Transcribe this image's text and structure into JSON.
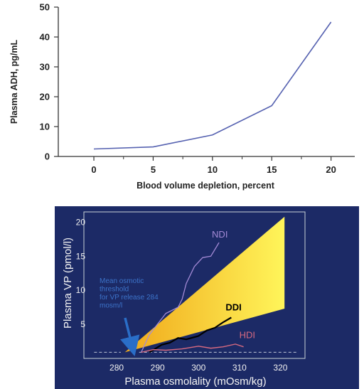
{
  "chart_data": [
    {
      "type": "line",
      "title": "",
      "xlabel": "Blood volume depletion, percent",
      "ylabel": "Plasma ADH, pg/mL",
      "xlim": [
        -3,
        22
      ],
      "ylim": [
        0,
        50
      ],
      "x_ticks": [
        0,
        5,
        10,
        15,
        20
      ],
      "y_ticks": [
        0,
        10,
        20,
        30,
        40,
        50
      ],
      "grid": false,
      "series": [
        {
          "x": [
            0,
            5,
            10,
            15,
            20
          ],
          "values": [
            2.5,
            3.2,
            7.2,
            17,
            45
          ]
        }
      ],
      "colors": {
        "line": "#5561b0",
        "axis": "#333333",
        "background": "#ffffff"
      }
    },
    {
      "type": "line",
      "title": "",
      "xlabel": "Plasma osmolality (mOsm/kg)",
      "ylabel": "Plasma VP (pmol/l)",
      "xlim": [
        272,
        326
      ],
      "ylim": [
        0,
        21.5
      ],
      "x_ticks": [
        280,
        290,
        300,
        310,
        320
      ],
      "y_ticks": [
        5,
        10,
        15,
        20
      ],
      "grid": false,
      "baseline": 0.9,
      "normal_range": {
        "upper": [
          [
            282,
            0.9
          ],
          [
            321,
            20.8
          ]
        ],
        "lower": [
          [
            282,
            0.9
          ],
          [
            321,
            7.3
          ]
        ]
      },
      "series": [
        {
          "name": "NDI",
          "x": [
            286,
            288,
            292,
            295,
            296,
            297,
            299,
            301,
            303,
            305
          ],
          "values": [
            0.9,
            3.5,
            6.6,
            7.5,
            8.7,
            11.0,
            13.5,
            14.8,
            15.0,
            17.0
          ]
        },
        {
          "name": "DDI",
          "x": [
            288,
            291,
            293,
            295,
            297,
            300,
            302,
            304,
            306,
            308
          ],
          "values": [
            0.9,
            2.0,
            2.3,
            3.0,
            2.8,
            3.3,
            4.1,
            4.5,
            5.3,
            6.0
          ]
        },
        {
          "name": "HDI",
          "x": [
            286,
            289,
            292,
            296,
            300,
            303,
            306,
            309,
            311
          ],
          "values": [
            0.9,
            1.3,
            1.2,
            1.4,
            1.8,
            1.5,
            1.7,
            2.1,
            1.7
          ]
        }
      ],
      "annotation": {
        "lines": [
          "Mean osmotic",
          "threshold",
          "for VP release 284",
          "mosm/l"
        ],
        "points_to": [
          284,
          0.9
        ]
      },
      "colors": {
        "background": "#1c2a66",
        "frame": "#c8d2d6",
        "band_light": "#fff55a",
        "band_dark": "#f0a81a",
        "ndi": "#a48ad6",
        "ddi": "#000000",
        "hdi": "#d86a80",
        "annotation": "#3c73c9",
        "arrow": "#2a6ec8",
        "text": "#f0f0f0"
      }
    }
  ]
}
